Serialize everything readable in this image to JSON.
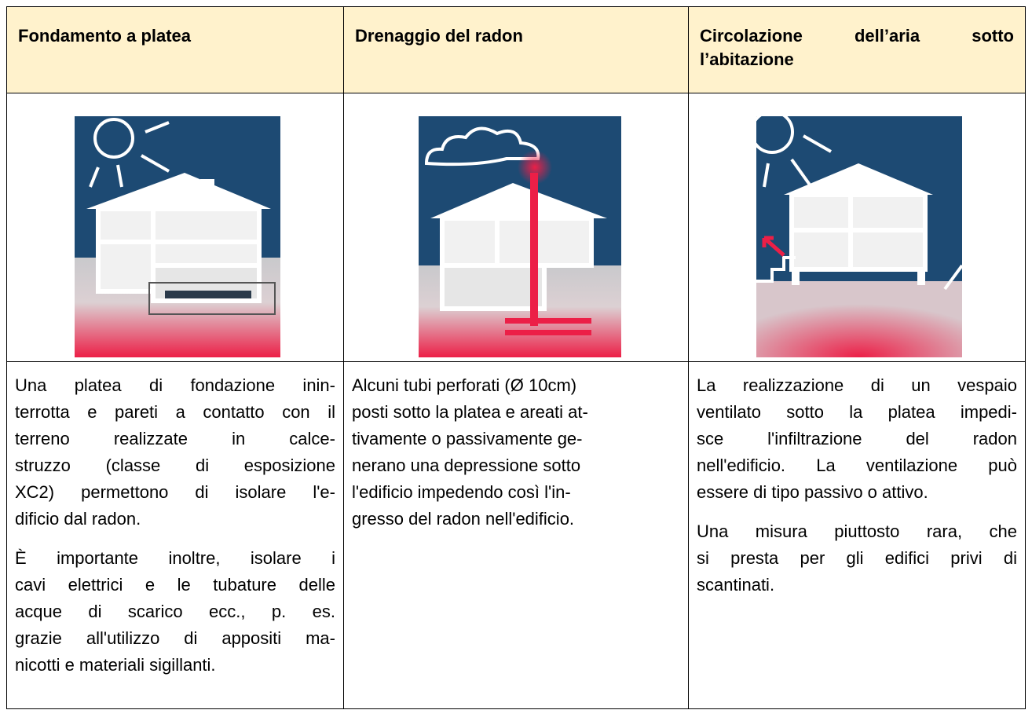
{
  "table": {
    "header": [
      "Fondamento a platea",
      "Drenaggio del radon",
      "Circolazione dell’aria sotto l’abitazione"
    ],
    "cells": [
      {
        "paragraphs": [
          [
            "Una platea di fondazione inin-",
            "terrotta e pareti a contatto con il",
            "terreno realizzate in calce-",
            "struzzo (classe di esposizione",
            "XC2) permettono di isolare l'e-",
            "dificio dal radon."
          ],
          [
            "È importante inoltre, isolare i",
            "cavi elettrici e le tubature delle",
            "acque di scarico ecc., p. es.",
            "grazie all'utilizzo di appositi ma-",
            "nicotti e materiali sigillanti."
          ]
        ]
      },
      {
        "paragraphs": [
          [
            "Alcuni tubi perforati (Ø 10cm)",
            "posti sotto la platea e areati at-",
            "tivamente o passivamente ge-",
            "nerano una depressione sotto",
            "l'edificio impedendo così l'in-",
            "gresso del radon nell'edificio."
          ]
        ]
      },
      {
        "paragraphs": [
          [
            "La realizzazione di un vespaio",
            "ventilato sotto la platea impedi-",
            "sce l'infiltrazione del radon",
            "nell'edificio. La ventilazione può",
            "essere di tipo passivo o attivo."
          ],
          [
            "Una misura piuttosto rara, che",
            "si presta per gli edifici privi di",
            "scantinati."
          ]
        ]
      }
    ]
  }
}
